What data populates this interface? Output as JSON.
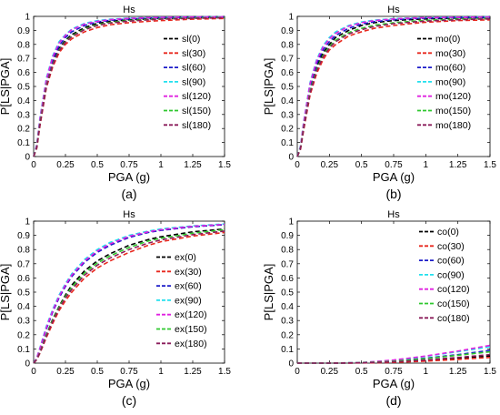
{
  "chart_data": [
    {
      "type": "line",
      "panel_label": "(a)",
      "title": "Hs",
      "xlabel": "PGA (g)",
      "ylabel": "P[LS|PGA]",
      "xlim": [
        0,
        1.5
      ],
      "ylim": [
        0,
        1
      ],
      "xticks": [
        "0",
        "0.25",
        "0.5",
        "0.75",
        "1",
        "1.25",
        "1.5"
      ],
      "yticks": [
        "0",
        "0.1",
        "0.2",
        "0.3",
        "0.4",
        "0.5",
        "0.6",
        "0.7",
        "0.8",
        "0.9",
        "1"
      ],
      "grid": false,
      "legend_position": "right",
      "x": [
        0,
        0.025,
        0.05,
        0.1,
        0.15,
        0.2,
        0.25,
        0.3,
        0.4,
        0.5,
        0.6,
        0.75,
        0.9,
        1.0,
        1.25,
        1.5
      ],
      "series": [
        {
          "name": "sl(0)",
          "color": "#000000",
          "values": [
            0,
            0.07,
            0.24,
            0.51,
            0.67,
            0.77,
            0.83,
            0.87,
            0.92,
            0.95,
            0.965,
            0.975,
            0.982,
            0.985,
            0.99,
            0.993
          ]
        },
        {
          "name": "sl(30)",
          "color": "#e8281e",
          "values": [
            0,
            0.06,
            0.22,
            0.49,
            0.64,
            0.74,
            0.8,
            0.84,
            0.89,
            0.92,
            0.94,
            0.955,
            0.965,
            0.97,
            0.98,
            0.985
          ]
        },
        {
          "name": "sl(60)",
          "color": "#1c1cc8",
          "values": [
            0,
            0.08,
            0.26,
            0.53,
            0.69,
            0.79,
            0.85,
            0.89,
            0.935,
            0.96,
            0.972,
            0.982,
            0.988,
            0.99,
            0.994,
            0.996
          ]
        },
        {
          "name": "sl(90)",
          "color": "#22e0ee",
          "values": [
            0,
            0.09,
            0.28,
            0.56,
            0.72,
            0.82,
            0.87,
            0.91,
            0.95,
            0.97,
            0.98,
            0.988,
            0.992,
            0.994,
            0.996,
            0.998
          ]
        },
        {
          "name": "sl(120)",
          "color": "#e020e0",
          "values": [
            0,
            0.085,
            0.27,
            0.55,
            0.71,
            0.81,
            0.865,
            0.905,
            0.945,
            0.965,
            0.977,
            0.986,
            0.991,
            0.993,
            0.996,
            0.997
          ]
        },
        {
          "name": "sl(150)",
          "color": "#2ec82e",
          "values": [
            0,
            0.07,
            0.24,
            0.51,
            0.66,
            0.76,
            0.82,
            0.86,
            0.91,
            0.94,
            0.956,
            0.97,
            0.978,
            0.982,
            0.988,
            0.992
          ]
        },
        {
          "name": "sl(180)",
          "color": "#8a1c5a",
          "values": [
            0,
            0.065,
            0.23,
            0.5,
            0.655,
            0.755,
            0.815,
            0.855,
            0.905,
            0.935,
            0.952,
            0.966,
            0.975,
            0.98,
            0.986,
            0.99
          ]
        }
      ]
    },
    {
      "type": "line",
      "panel_label": "(b)",
      "title": "Hs",
      "xlabel": "PGA (g)",
      "ylabel": "P[LS|PGA]",
      "xlim": [
        0,
        1.5
      ],
      "ylim": [
        0,
        1
      ],
      "xticks": [
        "0",
        "0.25",
        "0.5",
        "0.75",
        "1",
        "1.25",
        "1.5"
      ],
      "yticks": [
        "0",
        "0.1",
        "0.2",
        "0.3",
        "0.4",
        "0.5",
        "0.6",
        "0.7",
        "0.8",
        "0.9",
        "1"
      ],
      "grid": false,
      "legend_position": "right",
      "x": [
        0,
        0.025,
        0.05,
        0.1,
        0.15,
        0.2,
        0.25,
        0.3,
        0.4,
        0.5,
        0.6,
        0.75,
        0.9,
        1.0,
        1.25,
        1.5
      ],
      "series": [
        {
          "name": "mo(0)",
          "color": "#000000",
          "values": [
            0,
            0.06,
            0.22,
            0.48,
            0.64,
            0.74,
            0.8,
            0.85,
            0.9,
            0.935,
            0.955,
            0.97,
            0.978,
            0.982,
            0.988,
            0.99
          ]
        },
        {
          "name": "mo(30)",
          "color": "#e8281e",
          "values": [
            0,
            0.05,
            0.19,
            0.44,
            0.59,
            0.69,
            0.76,
            0.8,
            0.86,
            0.89,
            0.915,
            0.935,
            0.95,
            0.958,
            0.97,
            0.975
          ]
        },
        {
          "name": "mo(60)",
          "color": "#1c1cc8",
          "values": [
            0,
            0.065,
            0.23,
            0.5,
            0.66,
            0.76,
            0.82,
            0.865,
            0.915,
            0.945,
            0.962,
            0.976,
            0.984,
            0.987,
            0.992,
            0.994
          ]
        },
        {
          "name": "mo(90)",
          "color": "#22e0ee",
          "values": [
            0,
            0.075,
            0.25,
            0.53,
            0.69,
            0.79,
            0.85,
            0.89,
            0.935,
            0.96,
            0.973,
            0.984,
            0.989,
            0.992,
            0.995,
            0.997
          ]
        },
        {
          "name": "mo(120)",
          "color": "#e020e0",
          "values": [
            0,
            0.07,
            0.245,
            0.52,
            0.68,
            0.78,
            0.84,
            0.88,
            0.93,
            0.955,
            0.97,
            0.982,
            0.988,
            0.991,
            0.994,
            0.996
          ]
        },
        {
          "name": "mo(150)",
          "color": "#2ec82e",
          "values": [
            0,
            0.06,
            0.21,
            0.47,
            0.62,
            0.72,
            0.785,
            0.83,
            0.885,
            0.915,
            0.937,
            0.955,
            0.966,
            0.972,
            0.98,
            0.985
          ]
        },
        {
          "name": "mo(180)",
          "color": "#8a1c5a",
          "values": [
            0,
            0.055,
            0.2,
            0.455,
            0.61,
            0.71,
            0.775,
            0.82,
            0.875,
            0.905,
            0.928,
            0.948,
            0.96,
            0.966,
            0.976,
            0.982
          ]
        }
      ]
    },
    {
      "type": "line",
      "panel_label": "(c)",
      "title": "Hs",
      "xlabel": "PGA (g)",
      "ylabel": "P[LS|PGA]",
      "xlim": [
        0,
        1.5
      ],
      "ylim": [
        0,
        1
      ],
      "xticks": [
        "0",
        "0.25",
        "0.5",
        "0.75",
        "1",
        "1.25",
        "1.5"
      ],
      "yticks": [
        "0",
        "0.1",
        "0.2",
        "0.3",
        "0.4",
        "0.5",
        "0.6",
        "0.7",
        "0.8",
        "0.9",
        "1"
      ],
      "grid": false,
      "legend_position": "right",
      "x": [
        0,
        0.025,
        0.05,
        0.1,
        0.15,
        0.2,
        0.25,
        0.3,
        0.4,
        0.5,
        0.6,
        0.75,
        0.9,
        1.0,
        1.25,
        1.5
      ],
      "series": [
        {
          "name": "ex(0)",
          "color": "#000000",
          "values": [
            0,
            0.03,
            0.08,
            0.2,
            0.31,
            0.4,
            0.48,
            0.55,
            0.65,
            0.72,
            0.77,
            0.83,
            0.87,
            0.89,
            0.925,
            0.945
          ]
        },
        {
          "name": "ex(30)",
          "color": "#e8281e",
          "values": [
            0,
            0.025,
            0.07,
            0.18,
            0.28,
            0.37,
            0.44,
            0.5,
            0.6,
            0.67,
            0.72,
            0.78,
            0.83,
            0.855,
            0.895,
            0.92
          ]
        },
        {
          "name": "ex(60)",
          "color": "#1c1cc8",
          "values": [
            0,
            0.035,
            0.1,
            0.24,
            0.36,
            0.46,
            0.54,
            0.61,
            0.71,
            0.78,
            0.83,
            0.885,
            0.92,
            0.935,
            0.96,
            0.975
          ]
        },
        {
          "name": "ex(90)",
          "color": "#22e0ee",
          "values": [
            0,
            0.04,
            0.11,
            0.26,
            0.38,
            0.48,
            0.56,
            0.63,
            0.73,
            0.8,
            0.85,
            0.9,
            0.93,
            0.945,
            0.967,
            0.98
          ]
        },
        {
          "name": "ex(120)",
          "color": "#e020e0",
          "values": [
            0,
            0.038,
            0.105,
            0.25,
            0.37,
            0.47,
            0.55,
            0.62,
            0.72,
            0.79,
            0.84,
            0.893,
            0.925,
            0.94,
            0.964,
            0.977
          ]
        },
        {
          "name": "ex(150)",
          "color": "#2ec82e",
          "values": [
            0,
            0.028,
            0.078,
            0.2,
            0.305,
            0.395,
            0.47,
            0.535,
            0.635,
            0.705,
            0.755,
            0.815,
            0.86,
            0.88,
            0.915,
            0.94
          ]
        },
        {
          "name": "ex(180)",
          "color": "#8a1c5a",
          "values": [
            0,
            0.026,
            0.074,
            0.19,
            0.295,
            0.385,
            0.46,
            0.52,
            0.62,
            0.69,
            0.74,
            0.8,
            0.845,
            0.868,
            0.905,
            0.93
          ]
        }
      ]
    },
    {
      "type": "line",
      "panel_label": "(d)",
      "title": "Hs",
      "xlabel": "PGA (g)",
      "ylabel": "P[LS|PGA]",
      "xlim": [
        0,
        1.5
      ],
      "ylim": [
        0,
        1
      ],
      "xticks": [
        "0",
        "0.25",
        "0.5",
        "0.75",
        "1",
        "1.25",
        "1.5"
      ],
      "yticks": [
        "0",
        "0.1",
        "0.2",
        "0.3",
        "0.4",
        "0.5",
        "0.6",
        "0.7",
        "0.8",
        "0.9",
        "1"
      ],
      "grid": false,
      "legend_position": "top-right",
      "x": [
        0,
        0.25,
        0.5,
        0.75,
        1.0,
        1.25,
        1.5
      ],
      "series": [
        {
          "name": "co(0)",
          "color": "#000000",
          "values": [
            0,
            0.0,
            0.002,
            0.008,
            0.02,
            0.035,
            0.05
          ]
        },
        {
          "name": "co(30)",
          "color": "#e8281e",
          "values": [
            0,
            0.0,
            0.001,
            0.005,
            0.014,
            0.026,
            0.04
          ]
        },
        {
          "name": "co(60)",
          "color": "#1c1cc8",
          "values": [
            0,
            0.0,
            0.003,
            0.014,
            0.035,
            0.06,
            0.09
          ]
        },
        {
          "name": "co(90)",
          "color": "#22e0ee",
          "values": [
            0,
            0.0,
            0.004,
            0.02,
            0.048,
            0.08,
            0.115
          ]
        },
        {
          "name": "co(120)",
          "color": "#e020e0",
          "values": [
            0,
            0.0,
            0.004,
            0.022,
            0.05,
            0.085,
            0.125
          ]
        },
        {
          "name": "co(150)",
          "color": "#2ec82e",
          "values": [
            0,
            0.0,
            0.003,
            0.013,
            0.032,
            0.055,
            0.08
          ]
        },
        {
          "name": "co(180)",
          "color": "#8a1c5a",
          "values": [
            0,
            0.0,
            0.002,
            0.009,
            0.022,
            0.04,
            0.06
          ]
        }
      ]
    }
  ]
}
